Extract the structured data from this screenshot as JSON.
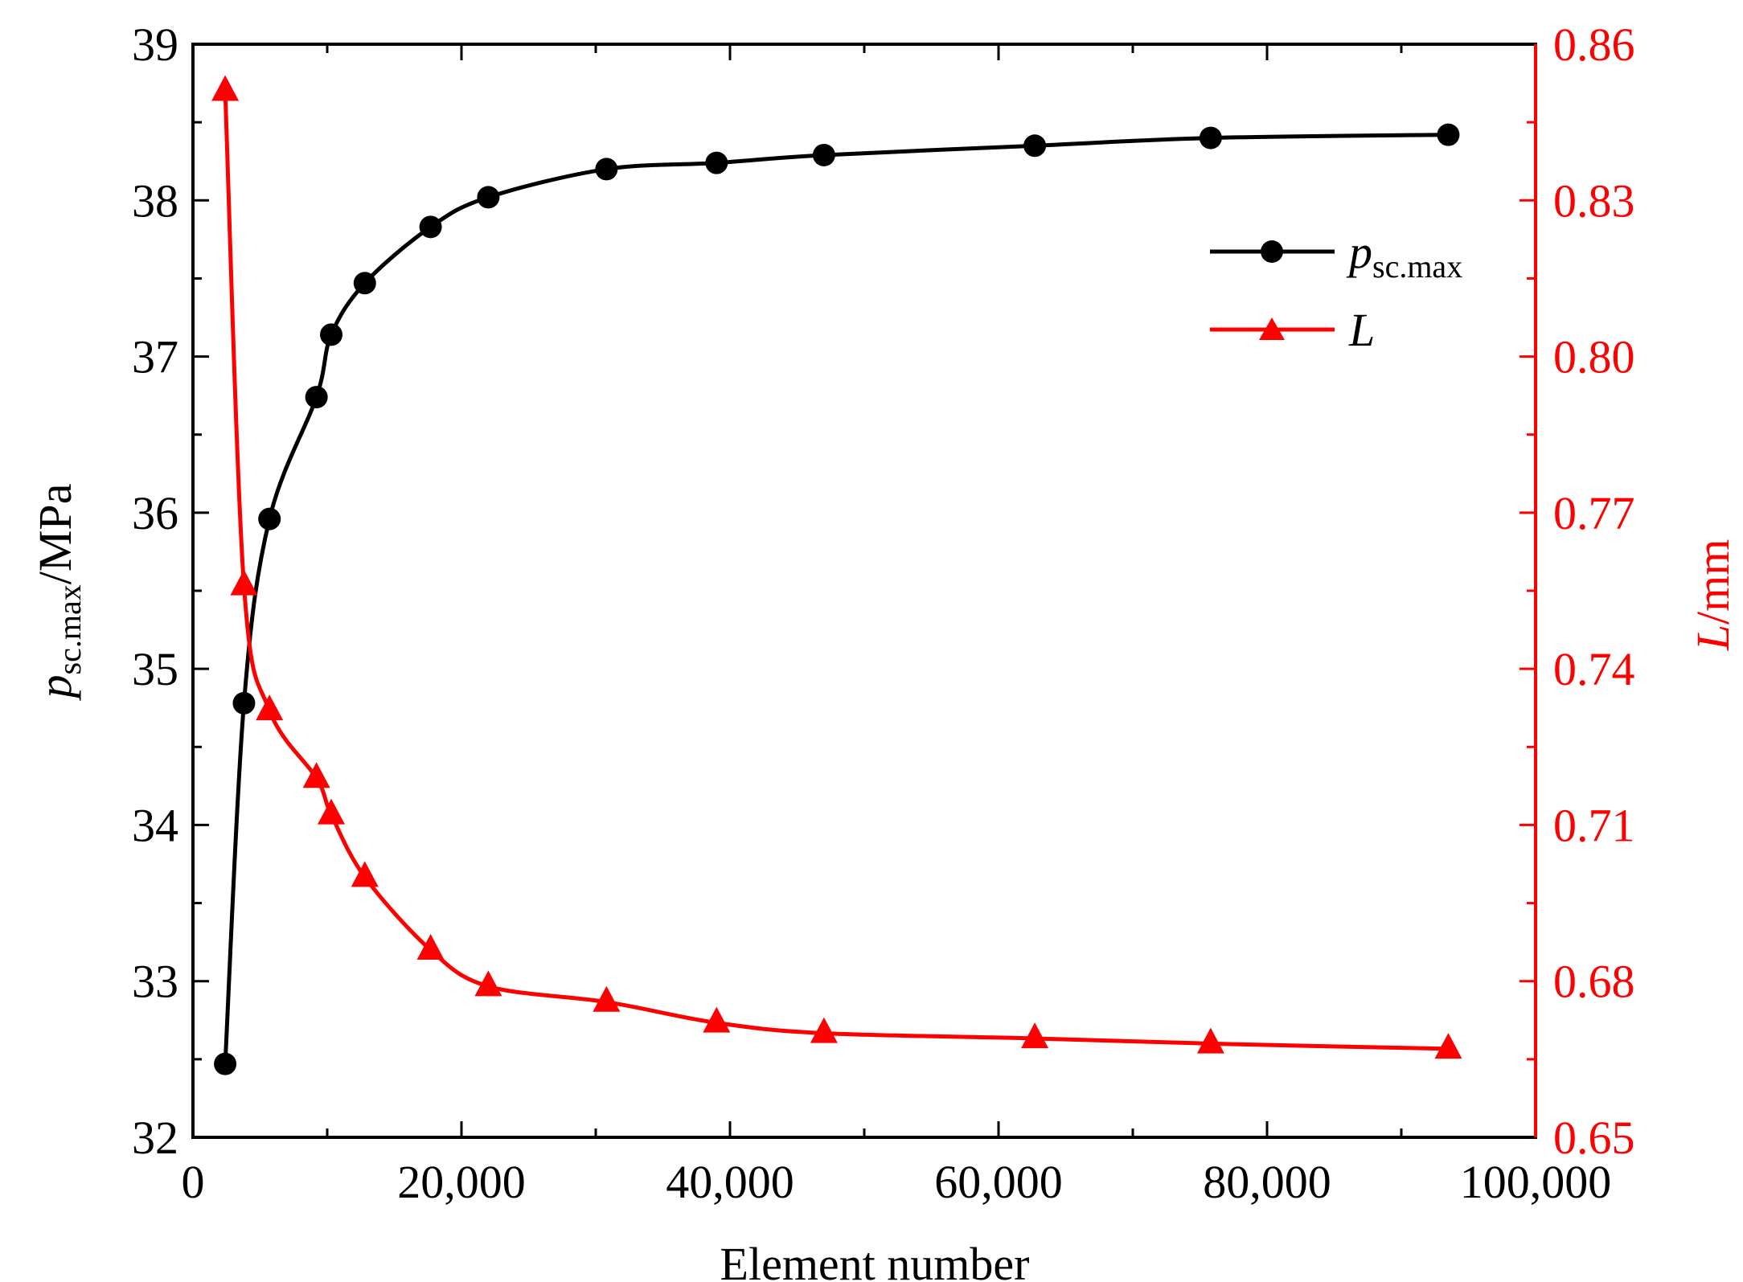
{
  "colors": {
    "left_axis": "#000000",
    "right_axis": "#ff0000",
    "series_p": "#000000",
    "series_L": "#ff0000"
  },
  "chart_data": {
    "type": "line",
    "title": "",
    "xlabel": "Element number",
    "ylabel_left": {
      "main": "p",
      "sub": "sc.max",
      "unit": "/MPa"
    },
    "ylabel_right": {
      "main": "L",
      "unit": "/mm"
    },
    "xlim": [
      0,
      100000
    ],
    "ylim_left": [
      32,
      39
    ],
    "ylim_right": [
      0.65,
      0.86
    ],
    "x_ticks": [
      0,
      20000,
      40000,
      60000,
      80000,
      100000
    ],
    "x_tick_labels": [
      "0",
      "20,000",
      "40,000",
      "60,000",
      "80,000",
      "100,000"
    ],
    "y_left_ticks": [
      32,
      33,
      34,
      35,
      36,
      37,
      38,
      39
    ],
    "y_left_tick_labels": [
      "32",
      "33",
      "34",
      "35",
      "36",
      "37",
      "38",
      "39"
    ],
    "y_right_ticks": [
      0.65,
      0.68,
      0.71,
      0.74,
      0.77,
      0.8,
      0.83,
      0.86
    ],
    "y_right_tick_labels": [
      "0.65",
      "0.68",
      "0.71",
      "0.74",
      "0.77",
      "0.80",
      "0.83",
      "0.86"
    ],
    "legend_position": "upper-right",
    "series": [
      {
        "name": "p_sc.max",
        "legend_main": "p",
        "legend_sub": "sc.max",
        "axis": "left",
        "marker": "circle",
        "x": [
          2400,
          3800,
          5700,
          9200,
          10300,
          12800,
          17700,
          22000,
          30800,
          39000,
          47000,
          62700,
          75800,
          93500
        ],
        "values": [
          32.47,
          34.78,
          35.96,
          36.74,
          37.14,
          37.47,
          37.83,
          38.02,
          38.2,
          38.24,
          38.29,
          38.35,
          38.4,
          38.42
        ]
      },
      {
        "name": "L",
        "legend_main": "L",
        "axis": "right",
        "marker": "triangle",
        "x": [
          2400,
          3800,
          5700,
          9200,
          10300,
          12800,
          17700,
          22000,
          30800,
          39000,
          47000,
          62700,
          75800,
          93500
        ],
        "values": [
          0.851,
          0.756,
          0.732,
          0.719,
          0.712,
          0.7,
          0.686,
          0.679,
          0.676,
          0.672,
          0.67,
          0.669,
          0.668,
          0.667
        ]
      }
    ]
  }
}
